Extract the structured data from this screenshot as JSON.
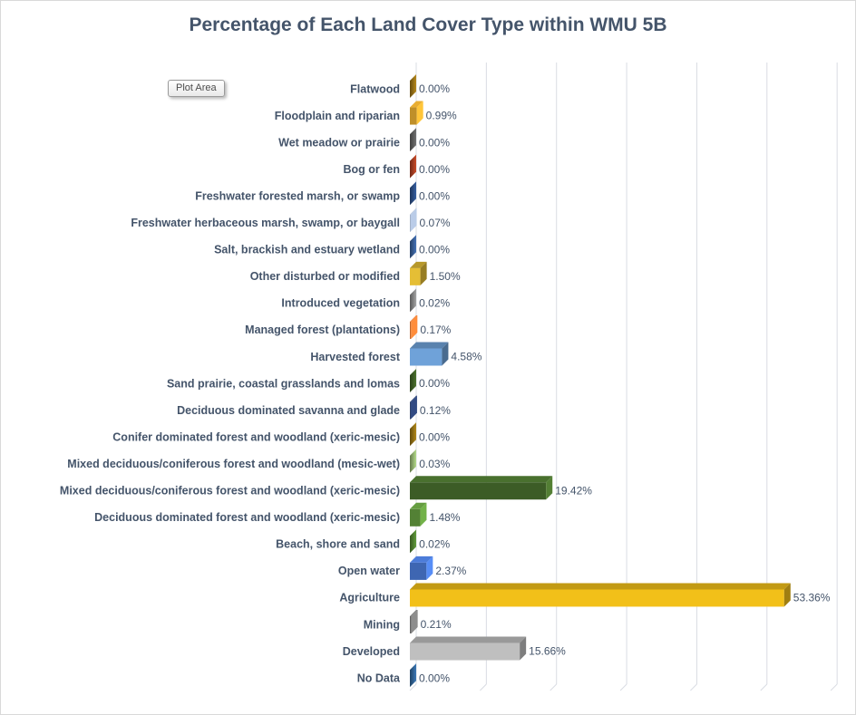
{
  "chart": {
    "tooltip_label": "Plot Area",
    "title_color": "#44546A",
    "gridline_color": "#D9DCE3",
    "frame_border_color": "#D9D9D9"
  },
  "chart_data": {
    "type": "bar",
    "orientation": "horizontal",
    "style": "3d",
    "title": "Percentage of Each Land Cover Type within WMU 5B",
    "xlabel": "",
    "ylabel": "",
    "xlim": [
      0,
      60
    ],
    "gridline_interval_pct": 10,
    "grid": true,
    "legend": false,
    "axis_label_color": "#44546A",
    "value_label_color": "#44546A",
    "categories": [
      "Flatwood",
      "Floodplain and riparian",
      "Wet meadow or prairie",
      "Bog or fen",
      "Freshwater forested  marsh, or swamp",
      "Freshwater herbaceous marsh, swamp, or baygall",
      "Salt, brackish and estuary wetland",
      "Other disturbed or modified",
      "Introduced vegetation",
      "Managed forest (plantations)",
      "Harvested forest",
      "Sand prairie, coastal grasslands and lomas",
      "Deciduous dominated savanna and glade",
      "Conifer dominated forest and woodland (xeric-mesic)",
      "Mixed deciduous/coniferous forest and woodland (mesic-wet)",
      "Mixed deciduous/coniferous forest and woodland  (xeric-mesic)",
      "Deciduous dominated forest and woodland (xeric-mesic)",
      "Beach, shore and sand",
      "Open water",
      "Agriculture",
      "Mining",
      "Developed",
      "No Data"
    ],
    "values": [
      0.0,
      0.99,
      0.0,
      0.0,
      0.0,
      0.07,
      0.0,
      1.5,
      0.02,
      0.17,
      4.58,
      0.0,
      0.12,
      0.0,
      0.03,
      19.42,
      1.48,
      0.02,
      2.37,
      53.36,
      0.21,
      15.66,
      0.0
    ],
    "value_labels": [
      "0.00%",
      "0.99%",
      "0.00%",
      "0.00%",
      "0.00%",
      "0.07%",
      "0.00%",
      "1.50%",
      "0.02%",
      "0.17%",
      "4.58%",
      "0.00%",
      "0.12%",
      "0.00%",
      "0.03%",
      "19.42%",
      "1.48%",
      "0.02%",
      "2.37%",
      "53.36%",
      "0.21%",
      "15.66%",
      "0.00%"
    ],
    "bar_colors": [
      "#8F6B16",
      "#BF8F29",
      "#595959",
      "#9E3B20",
      "#2A4A7E",
      "#8794A8",
      "#35598E",
      "#E5BE35",
      "#7F7F7F",
      "#C0662B",
      "#6FA2D9",
      "#3B5A24",
      "#24365F",
      "#8A6A14",
      "#8CAA6B",
      "#3C5C26",
      "#538135",
      "#4C7A2E",
      "#3E66B2",
      "#F2C019",
      "#666666",
      "#BFBFBF",
      "#2E5E8E"
    ]
  }
}
